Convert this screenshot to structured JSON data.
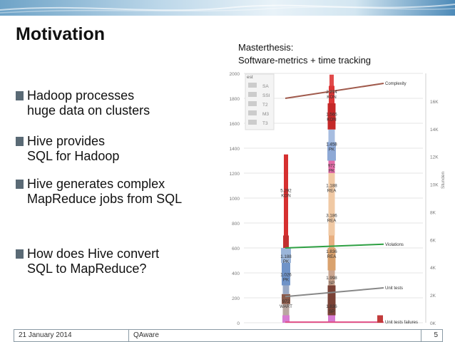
{
  "slide": {
    "title": "Motivation",
    "caption_line1": "Masterthesis:",
    "caption_line2": "Software-metrics + time tracking",
    "bullets": [
      {
        "line1": "Hadoop processes",
        "line2": "huge data on clusters"
      },
      {
        "line1": "Hive provides",
        "line2": "SQL for Hadoop"
      },
      {
        "line1": "Hive generates complex",
        "line2": "MapReduce jobs from SQL"
      },
      {
        "line1": "How does Hive convert",
        "line2": "SQL to MapReduce?"
      }
    ]
  },
  "footer": {
    "date": "21 January 2014",
    "company": "QAware",
    "page": "5"
  },
  "chart_data": {
    "type": "bar",
    "left_axis": {
      "ticks": [
        "0",
        "200",
        "400",
        "600",
        "800",
        "1000",
        "1200",
        "1400",
        "1600",
        "1800",
        "2000"
      ],
      "range": [
        0,
        2000
      ]
    },
    "right_axis": {
      "ticks": [
        "0K",
        "2K",
        "4K",
        "6K",
        "8K",
        "10K",
        "12K",
        "14K",
        "16K"
      ],
      "range": [
        0,
        18000
      ],
      "label": "Stunden"
    },
    "legend_header": "est",
    "legend_items": [
      "SA",
      "SSI",
      "T2",
      "M3",
      "T3"
    ],
    "lines": [
      {
        "name": "Complexity",
        "values": [
          1800,
          1920
        ],
        "color": "#a05a4c"
      },
      {
        "name": "Violations",
        "values": [
          600,
          630
        ],
        "color": "#2ea043"
      },
      {
        "name": "Unit tests",
        "values": [
          210,
          280
        ],
        "color": "#888888"
      },
      {
        "name": "Unit tests failures",
        "values": [
          5,
          5
        ],
        "color": "#e04f86"
      }
    ],
    "bars": [
      {
        "labels": [
          {
            "t1": "5.292",
            "t2": "KON",
            "y": 1050
          },
          {
            "t1": "1.188",
            "t2": "PK",
            "y": 520
          },
          {
            "t1": "1.026",
            "t2": "PK",
            "y": 375
          },
          {
            "t1": "972",
            "t2": "WART",
            "y": 160
          }
        ]
      },
      {
        "labels": [
          {
            "t1": "2.214",
            "t2": "KON",
            "y": 1840
          },
          {
            "t1": "1.566",
            "t2": "KON",
            "y": 1660
          },
          {
            "t1": "1.458",
            "t2": "PK",
            "y": 1420
          },
          {
            "t1": "972",
            "t2": "PK",
            "y": 1250
          },
          {
            "t1": "1.188",
            "t2": "REA",
            "y": 1090
          },
          {
            "t1": "3.186",
            "t2": "REA",
            "y": 850
          },
          {
            "t1": "1.836",
            "t2": "REA",
            "y": 560
          },
          {
            "t1": "1.998",
            "t2": "SP",
            "y": 350
          },
          {
            "t1": "1.836",
            "t2": "SP",
            "y": 120
          }
        ]
      }
    ]
  }
}
